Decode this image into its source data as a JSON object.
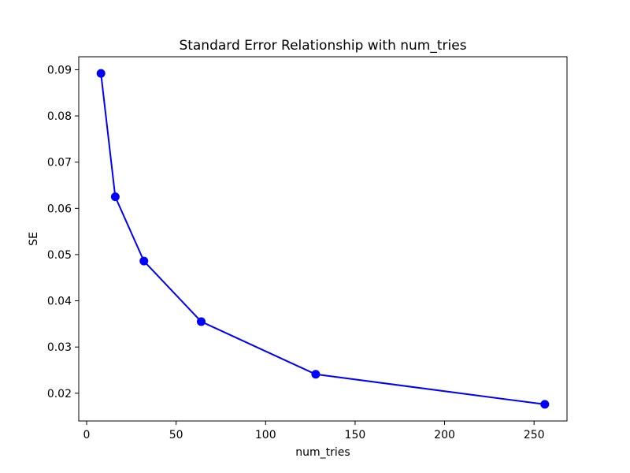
{
  "figure": {
    "background_color": "#ffffff",
    "text_color": "#000000",
    "spine_color": "#000000"
  },
  "chart_data": {
    "type": "line",
    "title": "Standard Error Relationship with num_tries",
    "xlabel": "num_tries",
    "ylabel": "SE",
    "x": [
      8,
      16,
      32,
      64,
      128,
      256
    ],
    "y": [
      0.0892,
      0.0625,
      0.0486,
      0.0355,
      0.0241,
      0.0176
    ],
    "line_color": "#0000ff",
    "marker": "circle",
    "marker_color": "#0000ff",
    "xticks": [
      0,
      50,
      100,
      150,
      200,
      250
    ],
    "xtick_labels": [
      "0",
      "50",
      "100",
      "150",
      "200",
      "250"
    ],
    "yticks": [
      0.02,
      0.03,
      0.04,
      0.05,
      0.06,
      0.07,
      0.08,
      0.09
    ],
    "ytick_labels": [
      "0.02",
      "0.03",
      "0.04",
      "0.05",
      "0.06",
      "0.07",
      "0.08",
      "0.09"
    ],
    "xlim": [
      -4.4,
      268.4
    ],
    "ylim": [
      0.014,
      0.0928
    ],
    "grid": false,
    "legend_position": "none"
  }
}
